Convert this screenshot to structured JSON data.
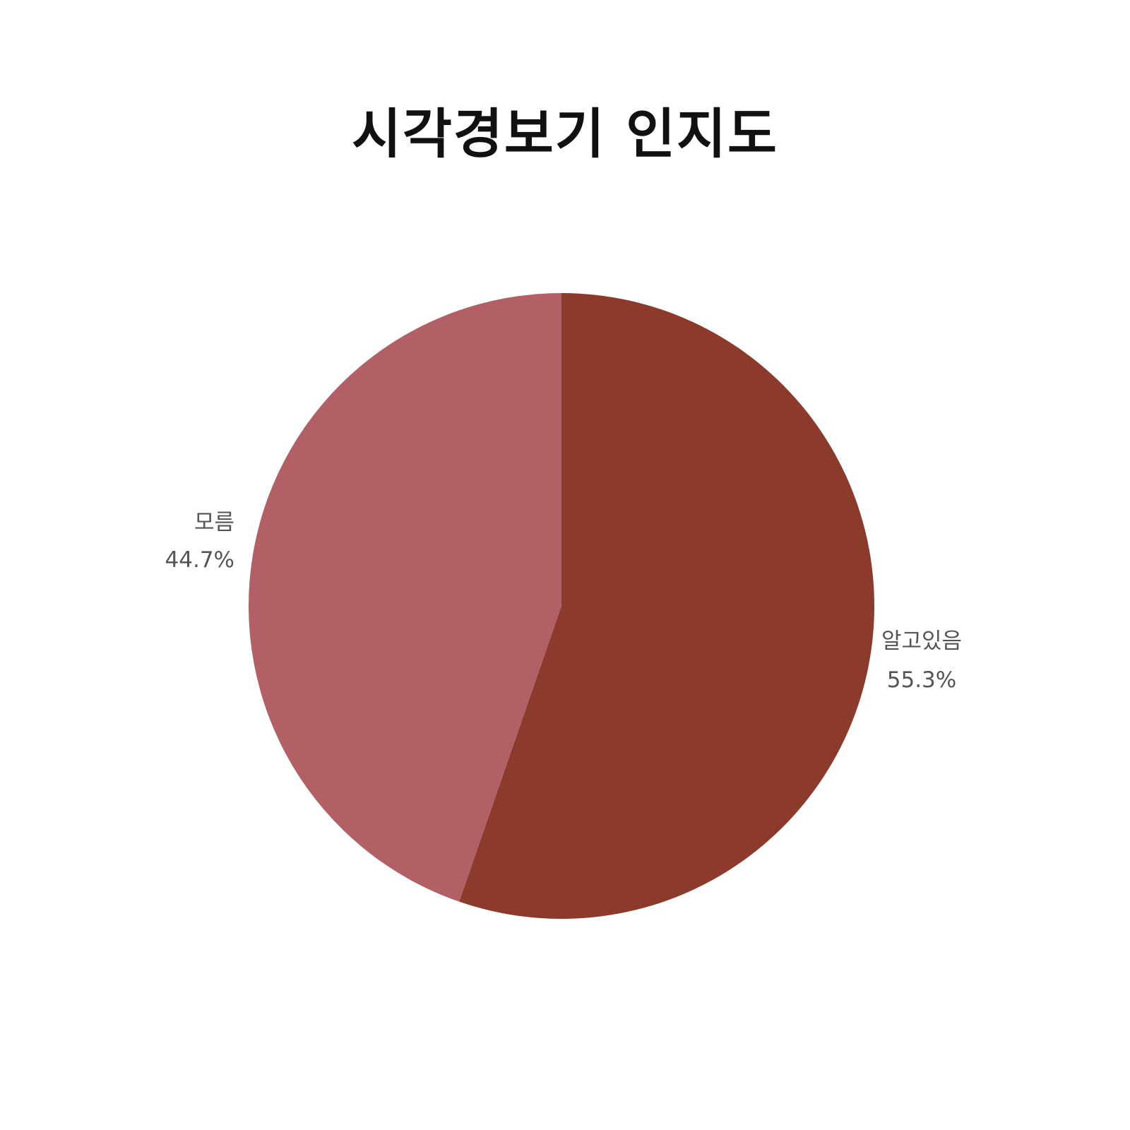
{
  "chart_data": {
    "type": "pie",
    "title": "시각경보기 인지도",
    "slices": [
      {
        "label": "알고있음",
        "value": 55.3,
        "value_text": "55.3%",
        "color": "#8b3a2c"
      },
      {
        "label": "모름",
        "value": 44.7,
        "value_text": "44.7%",
        "color": "#b26066"
      }
    ],
    "start": "12 o'clock",
    "direction": "clockwise",
    "legend": "none",
    "labels": "outside"
  }
}
